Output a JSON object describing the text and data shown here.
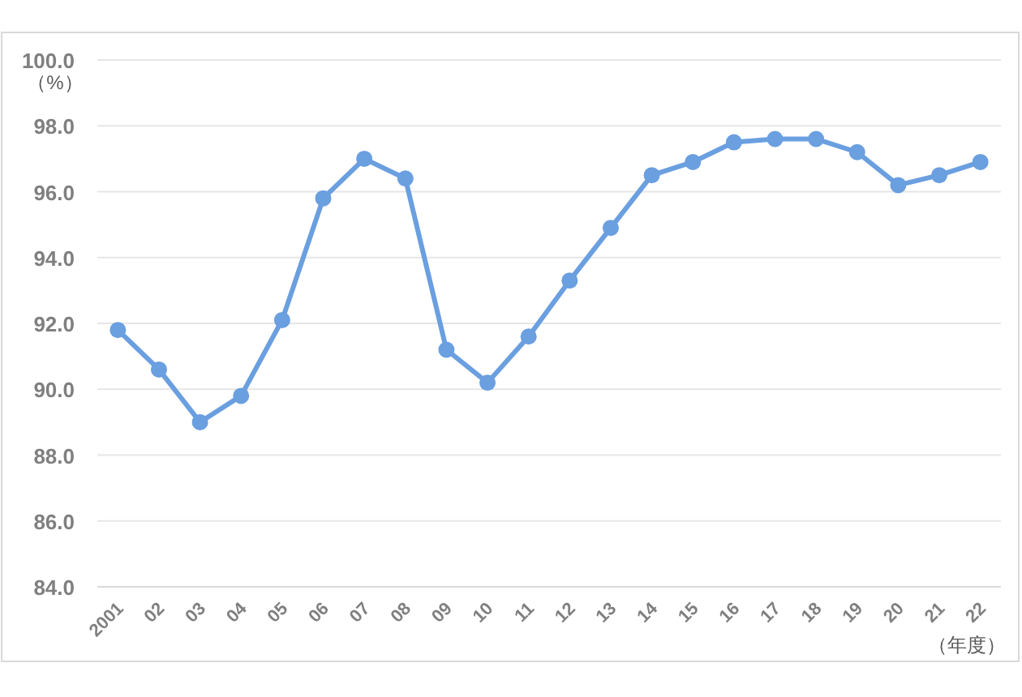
{
  "chart_data": {
    "type": "line",
    "ylabel": "（%）",
    "xlabel": "（年度）",
    "categories": [
      "2001",
      "02",
      "03",
      "04",
      "05",
      "06",
      "07",
      "08",
      "09",
      "10",
      "11",
      "12",
      "13",
      "14",
      "15",
      "16",
      "17",
      "18",
      "19",
      "20",
      "21",
      "22"
    ],
    "series": [
      {
        "color": "#6a9fe0",
        "values": [
          91.8,
          90.6,
          89.0,
          89.8,
          92.1,
          95.8,
          97.0,
          96.4,
          91.2,
          90.2,
          91.6,
          93.3,
          94.9,
          96.5,
          96.9,
          97.5,
          97.6,
          97.6,
          97.2,
          96.2,
          96.5,
          96.9
        ]
      }
    ],
    "ylim": [
      84,
      100
    ],
    "yticks": [
      {
        "value": 84,
        "label": "84.0"
      },
      {
        "value": 86,
        "label": "86.0"
      },
      {
        "value": 88,
        "label": "88.0"
      },
      {
        "value": 90,
        "label": "90.0"
      },
      {
        "value": 92,
        "label": "92.0"
      },
      {
        "value": 94,
        "label": "94.0"
      },
      {
        "value": 96,
        "label": "96.0"
      },
      {
        "value": 98,
        "label": "98.0"
      },
      {
        "value": 100,
        "label": "100.0"
      }
    ],
    "grid": "y",
    "marker": "circle",
    "line_style": "solid"
  }
}
